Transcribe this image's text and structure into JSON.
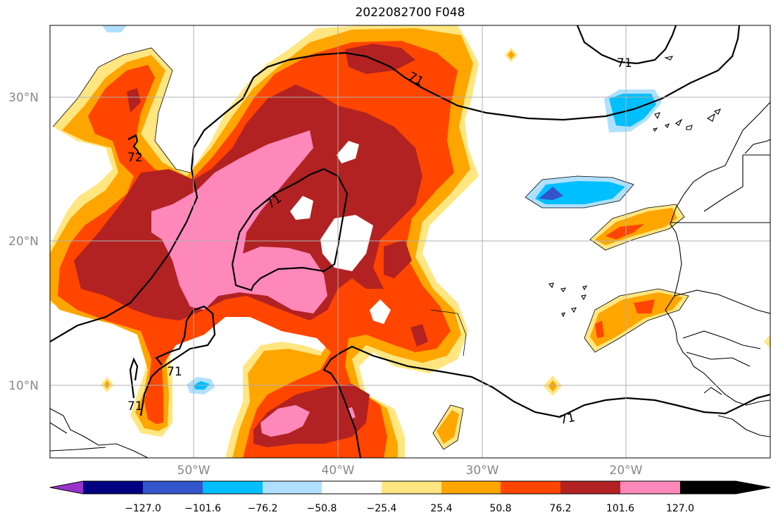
{
  "title": "2022082700 F048",
  "lat_labels": [
    "30°N",
    "20°N",
    "10°N"
  ],
  "lon_labels": [
    "50°W",
    "40°W",
    "30°W",
    "20°W"
  ],
  "contour_labels": [
    "71",
    "71",
    "72",
    "71",
    "71",
    "71",
    "71"
  ],
  "colorbar": {
    "colors": [
      "#9933cc",
      "#000080",
      "#3355cc",
      "#00bfff",
      "#b0e0ff",
      "#ffffff",
      "#ffe680",
      "#ffa500",
      "#ff4500",
      "#b22222",
      "#ff88bb"
    ],
    "ticks": [
      "−127.0",
      "−101.6",
      "−76.2",
      "−50.8",
      "−25.4",
      "25.4",
      "50.8",
      "76.2",
      "101.6",
      "127.0"
    ]
  }
}
